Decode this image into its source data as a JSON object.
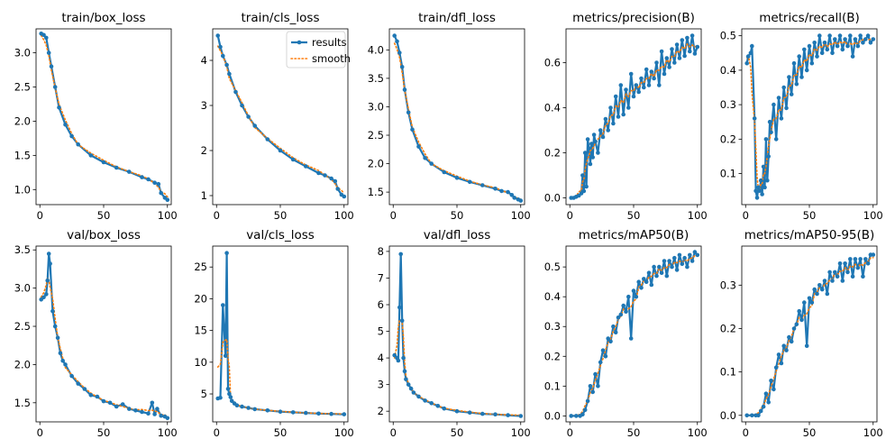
{
  "chart_data": {
    "type": "line",
    "legend": {
      "results": "results",
      "smooth": "smooth",
      "placement": "top-right of second panel"
    },
    "colors": {
      "results": "#1f77b4",
      "smooth": "#ff7f0e"
    },
    "x_ticks": [
      "0",
      "50",
      "100"
    ],
    "panels": [
      {
        "title": "train/box_loss",
        "ylim": [
          0.78,
          3.35
        ],
        "yticks": [
          1.0,
          1.5,
          2.0,
          2.5,
          3.0
        ],
        "ytick_labels": [
          "1.0",
          "1.5",
          "2.0",
          "2.5",
          "3.0"
        ],
        "series": [
          {
            "name": "results",
            "x": [
              1,
              3,
              5,
              7,
              9,
              12,
              15,
              20,
              25,
              30,
              40,
              50,
              60,
              70,
              80,
              85,
              90,
              93,
              95,
              98,
              100
            ],
            "y": [
              3.28,
              3.26,
              3.22,
              3.0,
              2.8,
              2.5,
              2.2,
              1.95,
              1.78,
              1.66,
              1.5,
              1.4,
              1.32,
              1.26,
              1.18,
              1.15,
              1.1,
              1.08,
              0.95,
              0.88,
              0.85
            ]
          }
        ]
      },
      {
        "title": "train/cls_loss",
        "ylim": [
          0.8,
          4.7
        ],
        "yticks": [
          1,
          2,
          3,
          4
        ],
        "ytick_labels": [
          "1",
          "2",
          "3",
          "4"
        ],
        "series": [
          {
            "name": "results",
            "x": [
              1,
              3,
              5,
              8,
              10,
              15,
              20,
              25,
              30,
              40,
              50,
              60,
              70,
              80,
              85,
              90,
              93,
              95,
              98,
              100
            ],
            "y": [
              4.55,
              4.3,
              4.1,
              3.9,
              3.7,
              3.3,
              3.0,
              2.75,
              2.55,
              2.25,
              2.0,
              1.8,
              1.65,
              1.5,
              1.45,
              1.38,
              1.32,
              1.15,
              1.02,
              0.98
            ]
          }
        ]
      },
      {
        "title": "train/dfl_loss",
        "ylim": [
          1.28,
          4.37
        ],
        "yticks": [
          1.5,
          2.0,
          2.5,
          3.0,
          3.5,
          4.0
        ],
        "ytick_labels": [
          "1.5",
          "2.0",
          "2.5",
          "3.0",
          "3.5",
          "4.0"
        ],
        "series": [
          {
            "name": "results",
            "x": [
              1,
              3,
              5,
              7,
              9,
              12,
              15,
              20,
              25,
              30,
              40,
              50,
              60,
              70,
              80,
              85,
              90,
              93,
              95,
              98,
              100
            ],
            "y": [
              4.25,
              4.15,
              3.95,
              3.7,
              3.3,
              2.9,
              2.6,
              2.3,
              2.1,
              2.0,
              1.85,
              1.75,
              1.68,
              1.62,
              1.56,
              1.52,
              1.5,
              1.45,
              1.4,
              1.37,
              1.35
            ]
          }
        ]
      },
      {
        "title": "metrics/precision(B)",
        "ylim": [
          -0.03,
          0.75
        ],
        "yticks": [
          0.0,
          0.2,
          0.4,
          0.6
        ],
        "ytick_labels": [
          "0.0",
          "0.2",
          "0.4",
          "0.6"
        ],
        "series": [
          {
            "name": "results",
            "x": [
              1,
              3,
              5,
              7,
              9,
              10,
              11,
              12,
              13,
              14,
              15,
              16,
              17,
              18,
              19,
              20,
              22,
              24,
              26,
              28,
              30,
              32,
              34,
              36,
              38,
              40,
              42,
              44,
              46,
              48,
              50,
              52,
              54,
              56,
              58,
              60,
              62,
              64,
              66,
              68,
              70,
              72,
              74,
              76,
              78,
              80,
              82,
              84,
              86,
              88,
              90,
              92,
              94,
              96,
              98,
              100
            ],
            "y": [
              0.0,
              0.0,
              0.005,
              0.01,
              0.02,
              0.1,
              0.03,
              0.2,
              0.05,
              0.26,
              0.22,
              0.15,
              0.24,
              0.18,
              0.28,
              0.25,
              0.2,
              0.3,
              0.27,
              0.35,
              0.3,
              0.4,
              0.33,
              0.45,
              0.36,
              0.5,
              0.37,
              0.48,
              0.4,
              0.55,
              0.45,
              0.5,
              0.47,
              0.53,
              0.49,
              0.57,
              0.5,
              0.56,
              0.53,
              0.6,
              0.5,
              0.65,
              0.55,
              0.62,
              0.58,
              0.66,
              0.6,
              0.68,
              0.62,
              0.7,
              0.63,
              0.71,
              0.65,
              0.72,
              0.64,
              0.67
            ]
          }
        ]
      },
      {
        "title": "metrics/recall(B)",
        "ylim": [
          0.01,
          0.52
        ],
        "yticks": [
          0.1,
          0.2,
          0.3,
          0.4,
          0.5
        ],
        "ytick_labels": [
          "0.1",
          "0.2",
          "0.3",
          "0.4",
          "0.5"
        ],
        "series": [
          {
            "name": "results",
            "x": [
              1,
              2,
              4,
              5,
              7,
              8,
              9,
              10,
              11,
              12,
              13,
              14,
              15,
              16,
              17,
              18,
              19,
              20,
              22,
              24,
              26,
              28,
              30,
              32,
              34,
              36,
              38,
              40,
              42,
              44,
              46,
              48,
              50,
              52,
              54,
              56,
              58,
              60,
              62,
              64,
              66,
              68,
              70,
              72,
              74,
              76,
              78,
              80,
              82,
              84,
              86,
              88,
              90,
              92,
              94,
              96,
              98,
              100
            ],
            "y": [
              0.42,
              0.44,
              0.45,
              0.47,
              0.26,
              0.05,
              0.03,
              0.06,
              0.05,
              0.08,
              0.04,
              0.12,
              0.06,
              0.2,
              0.08,
              0.15,
              0.25,
              0.22,
              0.3,
              0.2,
              0.32,
              0.26,
              0.35,
              0.29,
              0.38,
              0.33,
              0.42,
              0.36,
              0.44,
              0.38,
              0.46,
              0.4,
              0.47,
              0.42,
              0.48,
              0.44,
              0.5,
              0.45,
              0.48,
              0.46,
              0.5,
              0.45,
              0.49,
              0.47,
              0.5,
              0.46,
              0.49,
              0.47,
              0.5,
              0.44,
              0.49,
              0.47,
              0.5,
              0.48,
              0.49,
              0.5,
              0.48,
              0.49
            ]
          }
        ]
      },
      {
        "title": "val/box_loss",
        "ylim": [
          1.25,
          3.55
        ],
        "yticks": [
          1.5,
          2.0,
          2.5,
          3.0,
          3.5
        ],
        "ytick_labels": [
          "1.5",
          "2.0",
          "2.5",
          "3.0",
          "3.5"
        ],
        "series": [
          {
            "name": "results",
            "x": [
              1,
              3,
              5,
              6,
              7,
              8,
              10,
              12,
              14,
              16,
              18,
              20,
              25,
              30,
              35,
              40,
              45,
              50,
              55,
              60,
              65,
              70,
              75,
              80,
              85,
              88,
              90,
              92,
              95,
              98,
              100
            ],
            "y": [
              2.85,
              2.88,
              2.92,
              3.1,
              3.45,
              3.32,
              2.7,
              2.5,
              2.35,
              2.15,
              2.05,
              2.0,
              1.85,
              1.75,
              1.68,
              1.6,
              1.58,
              1.52,
              1.5,
              1.45,
              1.48,
              1.42,
              1.4,
              1.38,
              1.36,
              1.5,
              1.35,
              1.42,
              1.33,
              1.32,
              1.3
            ]
          }
        ]
      },
      {
        "title": "val/cls_loss",
        "ylim": [
          0.6,
          28.3
        ],
        "yticks": [
          5,
          10,
          15,
          20,
          25
        ],
        "ytick_labels": [
          "5",
          "10",
          "15",
          "20",
          "25"
        ],
        "series": [
          {
            "name": "results",
            "x": [
              1,
              3,
              5,
              7,
              8,
              9,
              10,
              11,
              12,
              14,
              16,
              20,
              25,
              30,
              40,
              50,
              60,
              70,
              80,
              90,
              100
            ],
            "y": [
              4.3,
              4.4,
              19.0,
              11.0,
              27.2,
              5.8,
              5.0,
              4.5,
              3.9,
              3.5,
              3.2,
              3.0,
              2.8,
              2.6,
              2.4,
              2.2,
              2.1,
              2.0,
              1.9,
              1.85,
              1.8
            ]
          }
        ]
      },
      {
        "title": "val/dfl_loss",
        "ylim": [
          1.6,
          8.2
        ],
        "yticks": [
          2,
          3,
          4,
          5,
          6,
          7,
          8
        ],
        "ytick_labels": [
          "2",
          "3",
          "4",
          "5",
          "6",
          "7",
          "8"
        ],
        "series": [
          {
            "name": "results",
            "x": [
              1,
              3,
              4,
              5,
              6,
              7,
              8,
              9,
              10,
              12,
              14,
              16,
              20,
              25,
              30,
              35,
              40,
              50,
              60,
              70,
              80,
              90,
              100
            ],
            "y": [
              4.1,
              4.0,
              3.9,
              5.9,
              7.9,
              5.4,
              4.0,
              3.5,
              3.2,
              3.0,
              2.85,
              2.7,
              2.55,
              2.4,
              2.3,
              2.2,
              2.1,
              2.0,
              1.95,
              1.9,
              1.88,
              1.85,
              1.82
            ]
          }
        ]
      },
      {
        "title": "metrics/mAP50(B)",
        "ylim": [
          -0.02,
          0.57
        ],
        "yticks": [
          0.0,
          0.1,
          0.2,
          0.3,
          0.4,
          0.5
        ],
        "ytick_labels": [
          "0.0",
          "0.1",
          "0.2",
          "0.3",
          "0.4",
          "0.5"
        ],
        "series": [
          {
            "name": "results",
            "x": [
              1,
              5,
              8,
              10,
              12,
              14,
              16,
              18,
              20,
              22,
              24,
              26,
              28,
              30,
              32,
              34,
              36,
              38,
              40,
              42,
              44,
              46,
              48,
              50,
              52,
              54,
              56,
              58,
              60,
              62,
              64,
              66,
              68,
              70,
              72,
              74,
              76,
              78,
              80,
              82,
              84,
              86,
              88,
              90,
              92,
              94,
              96,
              98,
              100
            ],
            "y": [
              0.0,
              0.0,
              0.0,
              0.005,
              0.02,
              0.05,
              0.1,
              0.08,
              0.14,
              0.1,
              0.18,
              0.22,
              0.2,
              0.26,
              0.25,
              0.3,
              0.28,
              0.33,
              0.34,
              0.37,
              0.35,
              0.4,
              0.26,
              0.42,
              0.4,
              0.45,
              0.43,
              0.46,
              0.45,
              0.48,
              0.44,
              0.5,
              0.47,
              0.5,
              0.48,
              0.52,
              0.47,
              0.52,
              0.5,
              0.53,
              0.49,
              0.54,
              0.51,
              0.53,
              0.5,
              0.54,
              0.52,
              0.55,
              0.54
            ]
          }
        ]
      },
      {
        "title": "metrics/mAP50-95(B)",
        "ylim": [
          -0.015,
          0.39
        ],
        "yticks": [
          0.0,
          0.1,
          0.2,
          0.3
        ],
        "ytick_labels": [
          "0.0",
          "0.1",
          "0.2",
          "0.3"
        ],
        "series": [
          {
            "name": "results",
            "x": [
              1,
              5,
              8,
              10,
              12,
              14,
              16,
              18,
              20,
              22,
              24,
              26,
              28,
              30,
              32,
              34,
              36,
              38,
              40,
              42,
              44,
              46,
              48,
              50,
              52,
              54,
              56,
              58,
              60,
              62,
              64,
              66,
              68,
              70,
              72,
              74,
              76,
              78,
              80,
              82,
              84,
              86,
              88,
              90,
              92,
              94,
              96,
              98,
              100
            ],
            "y": [
              0.0,
              0.0,
              0.0,
              0.0,
              0.01,
              0.02,
              0.05,
              0.03,
              0.08,
              0.06,
              0.11,
              0.14,
              0.12,
              0.16,
              0.15,
              0.18,
              0.17,
              0.2,
              0.21,
              0.24,
              0.22,
              0.26,
              0.16,
              0.27,
              0.26,
              0.29,
              0.28,
              0.3,
              0.29,
              0.31,
              0.28,
              0.33,
              0.31,
              0.33,
              0.32,
              0.35,
              0.31,
              0.35,
              0.33,
              0.36,
              0.32,
              0.36,
              0.34,
              0.36,
              0.32,
              0.36,
              0.35,
              0.37,
              0.37
            ]
          }
        ]
      }
    ]
  }
}
